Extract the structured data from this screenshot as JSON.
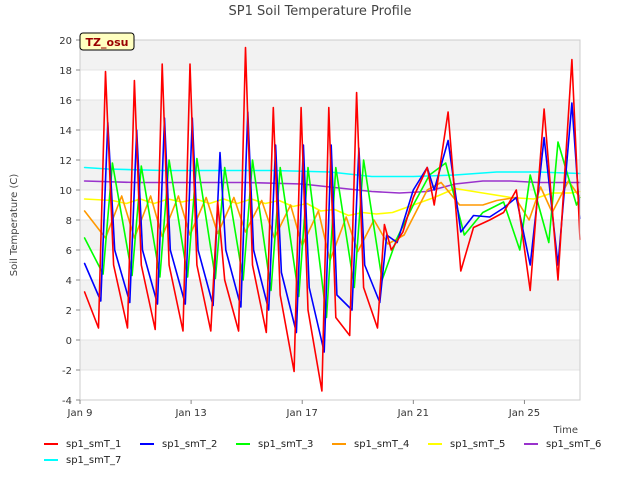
{
  "chart_data": {
    "type": "line",
    "title": "SP1 Soil Temperature Profile",
    "xlabel": "Time",
    "ylabel": "Soil Temperature (C)",
    "badge": "TZ_osu",
    "ylim": [
      -4,
      20
    ],
    "xlim": [
      "2025-01-09",
      "2025-01-27"
    ],
    "yticks": [
      -4,
      -2,
      0,
      2,
      4,
      6,
      8,
      10,
      12,
      14,
      16,
      18,
      20
    ],
    "xticks": [
      "Jan 9",
      "Jan 13",
      "Jan 17",
      "Jan 21",
      "Jan 25"
    ],
    "grid": "horizontal bands",
    "legend_position": "bottom",
    "series": [
      {
        "name": "sp1_smT_1",
        "color": "#ff0000",
        "x": [
          "2025-01-09T04:00",
          "2025-01-09T16:00",
          "2025-01-09T22:00",
          "2025-01-10T05:00",
          "2025-01-10T17:00",
          "2025-01-10T23:00",
          "2025-01-11T05:00",
          "2025-01-11T17:00",
          "2025-01-11T23:00",
          "2025-01-12T05:00",
          "2025-01-12T17:00",
          "2025-01-12T23:00",
          "2025-01-13T05:00",
          "2025-01-13T17:00",
          "2025-01-13T23:00",
          "2025-01-14T05:00",
          "2025-01-14T17:00",
          "2025-01-14T23:00",
          "2025-01-15T05:00",
          "2025-01-15T17:00",
          "2025-01-15T23:00",
          "2025-01-16T05:00",
          "2025-01-16T17:00",
          "2025-01-16T23:00",
          "2025-01-17T05:00",
          "2025-01-17T17:00",
          "2025-01-17T23:00",
          "2025-01-18T05:00",
          "2025-01-18T17:00",
          "2025-01-18T23:00",
          "2025-01-19T05:00",
          "2025-01-19T17:00",
          "2025-01-19T23:00",
          "2025-01-20T05:00",
          "2025-01-20T15:00",
          "2025-01-21T00:00",
          "2025-01-21T12:00",
          "2025-01-21T18:00",
          "2025-01-22T06:00",
          "2025-01-22T17:00",
          "2025-01-23T04:00",
          "2025-01-23T18:00",
          "2025-01-24T06:00",
          "2025-01-24T17:00",
          "2025-01-25T05:00",
          "2025-01-25T17:00",
          "2025-01-26T05:00",
          "2025-01-26T17:00",
          "2025-01-27T00:00"
        ],
        "y": [
          3.2,
          0.8,
          17.9,
          5.0,
          0.8,
          17.3,
          5.0,
          0.7,
          18.4,
          5.0,
          0.6,
          18.4,
          5.0,
          0.6,
          9.2,
          4.0,
          0.6,
          19.5,
          5.0,
          0.5,
          15.5,
          3.0,
          -2.1,
          15.5,
          2.0,
          -3.4,
          15.5,
          1.5,
          0.3,
          16.5,
          3.5,
          0.8,
          7.7,
          6.0,
          7.2,
          9.5,
          11.5,
          9.0,
          15.2,
          4.6,
          7.5,
          8.0,
          8.5,
          10.0,
          3.3,
          15.4,
          4.0,
          18.7,
          6.7
        ]
      },
      {
        "name": "sp1_smT_2",
        "color": "#0000ff",
        "x": [
          "2025-01-09T04:00",
          "2025-01-09T18:00",
          "2025-01-10T00:00",
          "2025-01-10T06:00",
          "2025-01-10T19:00",
          "2025-01-11T01:00",
          "2025-01-11T06:00",
          "2025-01-11T19:00",
          "2025-01-12T01:00",
          "2025-01-12T06:00",
          "2025-01-12T19:00",
          "2025-01-13T01:00",
          "2025-01-13T06:00",
          "2025-01-13T19:00",
          "2025-01-14T01:00",
          "2025-01-14T06:00",
          "2025-01-14T19:00",
          "2025-01-15T01:00",
          "2025-01-15T06:00",
          "2025-01-15T19:00",
          "2025-01-16T01:00",
          "2025-01-16T06:00",
          "2025-01-16T19:00",
          "2025-01-17T01:00",
          "2025-01-17T06:00",
          "2025-01-17T19:00",
          "2025-01-18T01:00",
          "2025-01-18T06:00",
          "2025-01-18T19:00",
          "2025-01-19T01:00",
          "2025-01-19T06:00",
          "2025-01-19T19:00",
          "2025-01-20T01:00",
          "2025-01-20T10:00",
          "2025-01-21T00:00",
          "2025-01-21T12:00",
          "2025-01-21T18:00",
          "2025-01-22T06:00",
          "2025-01-22T17:00",
          "2025-01-23T04:00",
          "2025-01-23T18:00",
          "2025-01-24T06:00",
          "2025-01-24T17:00",
          "2025-01-25T05:00",
          "2025-01-25T17:00",
          "2025-01-26T05:00",
          "2025-01-26T17:00",
          "2025-01-27T00:00"
        ],
        "y": [
          5.1,
          2.6,
          14.5,
          6.0,
          2.5,
          14.0,
          6.0,
          2.4,
          14.8,
          6.0,
          2.4,
          14.8,
          6.0,
          2.3,
          12.5,
          6.0,
          2.2,
          15.2,
          6.0,
          2.0,
          13.0,
          4.5,
          0.5,
          13.0,
          3.5,
          -0.8,
          13.0,
          3.0,
          2.0,
          12.8,
          5.0,
          2.5,
          7.0,
          6.5,
          10.0,
          11.5,
          10.0,
          13.3,
          7.2,
          8.3,
          8.2,
          8.8,
          9.5,
          5.0,
          13.5,
          5.0,
          15.8,
          8.1
        ]
      },
      {
        "name": "sp1_smT_3",
        "color": "#00ff00",
        "x": [
          "2025-01-09T04:00",
          "2025-01-09T20:00",
          "2025-01-10T04:00",
          "2025-01-10T21:00",
          "2025-01-11T05:00",
          "2025-01-11T21:00",
          "2025-01-12T05:00",
          "2025-01-12T21:00",
          "2025-01-13T05:00",
          "2025-01-13T21:00",
          "2025-01-14T05:00",
          "2025-01-14T21:00",
          "2025-01-15T05:00",
          "2025-01-15T21:00",
          "2025-01-16T05:00",
          "2025-01-16T21:00",
          "2025-01-17T05:00",
          "2025-01-17T21:00",
          "2025-01-18T05:00",
          "2025-01-18T21:00",
          "2025-01-19T05:00",
          "2025-01-19T21:00",
          "2025-01-20T10:00",
          "2025-01-21T00:00",
          "2025-01-21T14:00",
          "2025-01-22T04:00",
          "2025-01-22T20:00",
          "2025-01-23T12:00",
          "2025-01-24T06:00",
          "2025-01-24T20:00",
          "2025-01-25T05:00",
          "2025-01-25T21:00",
          "2025-01-26T05:00",
          "2025-01-26T21:00",
          "2025-01-27T00:00"
        ],
        "y": [
          6.8,
          4.4,
          11.8,
          4.3,
          11.6,
          4.2,
          12.0,
          4.2,
          12.1,
          4.1,
          11.5,
          4.0,
          12.0,
          3.3,
          11.5,
          2.9,
          11.5,
          1.5,
          11.5,
          3.5,
          12.0,
          4.0,
          6.8,
          9.0,
          11.0,
          11.8,
          7.0,
          8.5,
          9.2,
          6.0,
          11.0,
          6.5,
          13.2,
          9.0,
          9.5
        ]
      },
      {
        "name": "sp1_smT_4",
        "color": "#ff9900",
        "x": [
          "2025-01-09T04:00",
          "2025-01-09T22:00",
          "2025-01-10T12:00",
          "2025-01-10T23:00",
          "2025-01-11T13:00",
          "2025-01-11T23:00",
          "2025-01-12T13:00",
          "2025-01-12T23:00",
          "2025-01-13T13:00",
          "2025-01-13T23:00",
          "2025-01-14T13:00",
          "2025-01-14T23:00",
          "2025-01-15T13:00",
          "2025-01-16T00:00",
          "2025-01-16T14:00",
          "2025-01-17T00:00",
          "2025-01-17T14:00",
          "2025-01-18T00:00",
          "2025-01-18T14:00",
          "2025-01-19T00:00",
          "2025-01-19T14:00",
          "2025-01-20T02:00",
          "2025-01-20T16:00",
          "2025-01-21T12:00",
          "2025-01-22T00:00",
          "2025-01-22T16:00",
          "2025-01-23T12:00",
          "2025-01-24T00:00",
          "2025-01-24T16:00",
          "2025-01-25T04:00",
          "2025-01-25T14:00",
          "2025-01-26T00:00",
          "2025-01-26T14:00",
          "2025-01-27T00:00"
        ],
        "y": [
          8.6,
          6.8,
          9.6,
          6.8,
          9.6,
          6.9,
          9.6,
          7.0,
          9.5,
          7.1,
          9.5,
          7.2,
          9.3,
          6.8,
          9.0,
          6.3,
          8.6,
          5.3,
          8.2,
          5.9,
          8.0,
          6.4,
          7.0,
          10.0,
          10.5,
          9.0,
          9.0,
          9.3,
          9.5,
          8.0,
          10.2,
          8.5,
          10.6,
          9.5
        ]
      },
      {
        "name": "sp1_smT_5",
        "color": "#ffff00",
        "x": [
          "2025-01-09T04:00",
          "2025-01-10T04:00",
          "2025-01-10T16:00",
          "2025-01-11T04:00",
          "2025-01-11T16:00",
          "2025-01-12T04:00",
          "2025-01-12T16:00",
          "2025-01-13T04:00",
          "2025-01-13T16:00",
          "2025-01-14T04:00",
          "2025-01-14T16:00",
          "2025-01-15T04:00",
          "2025-01-15T16:00",
          "2025-01-16T04:00",
          "2025-01-16T16:00",
          "2025-01-17T04:00",
          "2025-01-17T16:00",
          "2025-01-18T04:00",
          "2025-01-18T16:00",
          "2025-01-19T04:00",
          "2025-01-19T16:00",
          "2025-01-20T06:00",
          "2025-01-21T00:00",
          "2025-01-21T18:00",
          "2025-01-22T12:00",
          "2025-01-23T12:00",
          "2025-01-24T12:00",
          "2025-01-25T08:00",
          "2025-01-26T00:00",
          "2025-01-26T16:00",
          "2025-01-27T00:00"
        ],
        "y": [
          9.4,
          9.3,
          9.1,
          9.4,
          9.1,
          9.4,
          9.2,
          9.4,
          9.1,
          9.4,
          9.1,
          9.4,
          9.1,
          9.3,
          8.9,
          9.1,
          8.6,
          8.7,
          8.3,
          8.5,
          8.4,
          8.5,
          9.0,
          9.5,
          10.1,
          9.8,
          9.5,
          9.4,
          9.8,
          9.8,
          9.9
        ]
      },
      {
        "name": "sp1_smT_6",
        "color": "#9932cc",
        "x": [
          "2025-01-09T04:00",
          "2025-01-11T00:00",
          "2025-01-13T00:00",
          "2025-01-15T00:00",
          "2025-01-17T00:00",
          "2025-01-18T12:00",
          "2025-01-19T12:00",
          "2025-01-20T12:00",
          "2025-01-21T12:00",
          "2025-01-22T12:00",
          "2025-01-23T12:00",
          "2025-01-24T12:00",
          "2025-01-25T12:00",
          "2025-01-26T12:00",
          "2025-01-27T00:00"
        ],
        "y": [
          10.6,
          10.5,
          10.5,
          10.5,
          10.4,
          10.1,
          9.9,
          9.8,
          9.9,
          10.4,
          10.6,
          10.6,
          10.5,
          10.5,
          10.5
        ]
      },
      {
        "name": "sp1_smT_7",
        "color": "#00ffff",
        "x": [
          "2025-01-09T04:00",
          "2025-01-10T00:00",
          "2025-01-12T00:00",
          "2025-01-14T00:00",
          "2025-01-16T00:00",
          "2025-01-18T00:00",
          "2025-01-19T12:00",
          "2025-01-21T00:00",
          "2025-01-22T12:00",
          "2025-01-24T00:00",
          "2025-01-25T12:00",
          "2025-01-27T00:00"
        ],
        "y": [
          11.5,
          11.4,
          11.3,
          11.3,
          11.3,
          11.2,
          10.9,
          10.9,
          11.0,
          11.2,
          11.2,
          11.1
        ]
      }
    ]
  }
}
